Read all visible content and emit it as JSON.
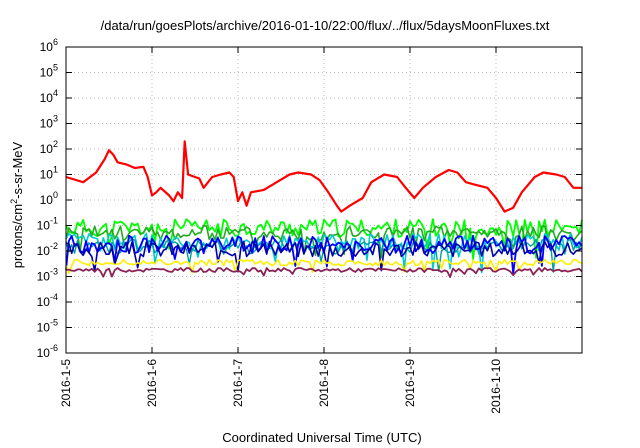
{
  "chart_data": {
    "type": "line",
    "title": "/data/run/goesPlots/archive/2016-01-10/22:00/flux/../flux/5daysMoonFluxes.txt",
    "xlabel": "Coordinated Universal Time (UTC)",
    "ylabel_base": "protons/cm",
    "ylabel_sup": "2",
    "ylabel_rest": "-s-sr-MeV",
    "yscale": "log",
    "ylim": [
      1e-06,
      1000000.0
    ],
    "xlim": [
      0,
      6.0
    ],
    "grid": true,
    "x_ticks": [
      {
        "value": 0,
        "label": "2016-1-5"
      },
      {
        "value": 1,
        "label": "2016-1-6"
      },
      {
        "value": 2,
        "label": "2016-1-7"
      },
      {
        "value": 3,
        "label": "2016-1-8"
      },
      {
        "value": 4,
        "label": "2016-1-9"
      },
      {
        "value": 5,
        "label": "2016-1-10"
      }
    ],
    "y_ticks": [
      {
        "exp": -6,
        "label_base": "10",
        "label_exp": "-6"
      },
      {
        "exp": -5,
        "label_base": "10",
        "label_exp": "-5"
      },
      {
        "exp": -4,
        "label_base": "10",
        "label_exp": "-4"
      },
      {
        "exp": -3,
        "label_base": "10",
        "label_exp": "-3"
      },
      {
        "exp": -2,
        "label_base": "10",
        "label_exp": "-2"
      },
      {
        "exp": -1,
        "label_base": "10",
        "label_exp": "-1"
      },
      {
        "exp": 0,
        "label_base": "10",
        "label_exp": "0"
      },
      {
        "exp": 1,
        "label_base": "10",
        "label_exp": "1"
      },
      {
        "exp": 2,
        "label_base": "10",
        "label_exp": "2"
      },
      {
        "exp": 3,
        "label_base": "10",
        "label_exp": "3"
      },
      {
        "exp": 4,
        "label_base": "10",
        "label_exp": "4"
      },
      {
        "exp": 5,
        "label_base": "10",
        "label_exp": "5"
      },
      {
        "exp": 6,
        "label_base": "10",
        "label_exp": "6"
      }
    ],
    "series": [
      {
        "color": "#ff0000",
        "width": 2.2,
        "points": [
          [
            0,
            8
          ],
          [
            0.2,
            5
          ],
          [
            0.35,
            12
          ],
          [
            0.45,
            40
          ],
          [
            0.5,
            90
          ],
          [
            0.55,
            60
          ],
          [
            0.6,
            30
          ],
          [
            0.7,
            25
          ],
          [
            0.8,
            18
          ],
          [
            0.9,
            20
          ],
          [
            0.95,
            8
          ],
          [
            1.0,
            1.5
          ],
          [
            1.05,
            2
          ],
          [
            1.1,
            3
          ],
          [
            1.2,
            1.5
          ],
          [
            1.25,
            0.9
          ],
          [
            1.3,
            2
          ],
          [
            1.35,
            1.2
          ],
          [
            1.38,
            200
          ],
          [
            1.42,
            10
          ],
          [
            1.5,
            8
          ],
          [
            1.55,
            7
          ],
          [
            1.6,
            3
          ],
          [
            1.7,
            8
          ],
          [
            1.8,
            10
          ],
          [
            1.9,
            12
          ],
          [
            1.95,
            8
          ],
          [
            2.0,
            0.9
          ],
          [
            2.05,
            2
          ],
          [
            2.1,
            0.6
          ],
          [
            2.15,
            2
          ],
          [
            2.3,
            2.5
          ],
          [
            2.45,
            5
          ],
          [
            2.6,
            10
          ],
          [
            2.7,
            12
          ],
          [
            2.85,
            10
          ],
          [
            2.95,
            6
          ],
          [
            3.05,
            2
          ],
          [
            3.15,
            0.6
          ],
          [
            3.2,
            0.35
          ],
          [
            3.3,
            0.6
          ],
          [
            3.45,
            1.2
          ],
          [
            3.55,
            5
          ],
          [
            3.7,
            10
          ],
          [
            3.85,
            8
          ],
          [
            3.95,
            3
          ],
          [
            4.05,
            1.2
          ],
          [
            4.15,
            3
          ],
          [
            4.3,
            8
          ],
          [
            4.45,
            15
          ],
          [
            4.55,
            12
          ],
          [
            4.65,
            5
          ],
          [
            4.75,
            4
          ],
          [
            4.9,
            3
          ],
          [
            5.0,
            1.2
          ],
          [
            5.1,
            0.35
          ],
          [
            5.2,
            0.5
          ],
          [
            5.3,
            2
          ],
          [
            5.45,
            8
          ],
          [
            5.55,
            12
          ],
          [
            5.7,
            10
          ],
          [
            5.8,
            8
          ],
          [
            5.9,
            3
          ],
          [
            6.0,
            3
          ]
        ]
      },
      {
        "color": "#00ff00",
        "width": 1.8,
        "base": 0.08,
        "amp": 0.35,
        "seed": 11
      },
      {
        "color": "#22aa22",
        "width": 1.6,
        "base": 0.05,
        "amp": 0.3,
        "seed": 23
      },
      {
        "color": "#00cccc",
        "width": 1.6,
        "base": 0.022,
        "amp": 0.35,
        "seed": 37
      },
      {
        "color": "#00a0a0",
        "width": 1.4,
        "base": 0.015,
        "amp": 0.3,
        "seed": 41
      },
      {
        "color": "#0000ff",
        "width": 1.8,
        "base": 0.018,
        "amp": 0.35,
        "seed": 53
      },
      {
        "color": "#0000aa",
        "width": 1.6,
        "base": 0.012,
        "amp": 0.3,
        "seed": 67
      },
      {
        "color": "#ffee00",
        "width": 1.6,
        "base": 0.0035,
        "amp": 0.12,
        "seed": 71
      },
      {
        "color": "#882255",
        "width": 1.8,
        "base": 0.0018,
        "amp": 0.08,
        "seed": 83
      }
    ]
  }
}
